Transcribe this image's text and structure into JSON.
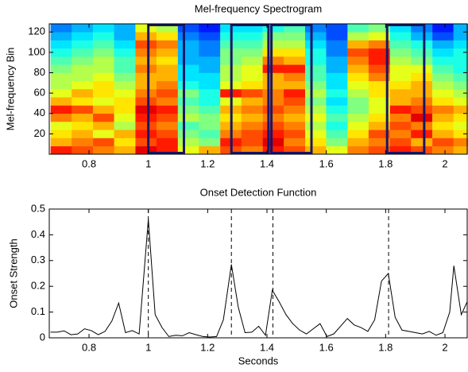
{
  "chart_data": [
    {
      "type": "heatmap",
      "title": "Mel-frequency Spectrogram",
      "ylabel": "Mel-frequency Bin",
      "colormap": "jet",
      "xlim": [
        0.666,
        2.075
      ],
      "ylim": [
        0,
        128
      ],
      "xticks": [
        0.8,
        1,
        1.2,
        1.4,
        1.6,
        1.8,
        2
      ],
      "yticks": [
        20,
        40,
        60,
        80,
        100,
        120
      ],
      "x": [
        0.706,
        0.777,
        0.849,
        0.92,
        0.992,
        1.063,
        1.135,
        1.206,
        1.278,
        1.349,
        1.421,
        1.492,
        1.564,
        1.635,
        1.707,
        1.778,
        1.85,
        1.921,
        1.993,
        2.064
      ],
      "y": [
        4,
        12,
        20,
        28,
        36,
        44,
        52,
        60,
        68,
        76,
        84,
        92,
        100,
        108,
        116,
        124
      ],
      "z": [
        [
          0.85,
          0.8,
          0.75,
          0.7,
          0.9,
          0.85,
          0.6,
          0.7,
          0.8,
          0.75,
          0.85,
          0.8,
          0.7,
          0.6,
          0.75,
          0.8,
          0.85,
          0.8,
          0.75,
          0.7
        ],
        [
          0.7,
          0.75,
          0.8,
          0.65,
          0.8,
          0.85,
          0.55,
          0.5,
          0.85,
          0.8,
          0.9,
          0.75,
          0.65,
          0.5,
          0.7,
          0.75,
          0.8,
          0.7,
          0.8,
          0.75
        ],
        [
          0.65,
          0.7,
          0.6,
          0.7,
          0.85,
          0.8,
          0.5,
          0.45,
          0.75,
          0.8,
          0.85,
          0.8,
          0.6,
          0.45,
          0.65,
          0.8,
          0.75,
          0.85,
          0.7,
          0.65
        ],
        [
          0.6,
          0.65,
          0.7,
          0.55,
          0.8,
          0.75,
          0.45,
          0.5,
          0.7,
          0.75,
          0.8,
          0.75,
          0.55,
          0.4,
          0.6,
          0.7,
          0.8,
          0.75,
          0.65,
          0.6
        ],
        [
          0.75,
          0.7,
          0.8,
          0.6,
          0.85,
          0.8,
          0.55,
          0.5,
          0.65,
          0.7,
          0.75,
          0.7,
          0.6,
          0.45,
          0.55,
          0.65,
          0.75,
          0.9,
          0.7,
          0.65
        ],
        [
          0.85,
          0.8,
          0.7,
          0.65,
          0.9,
          0.85,
          0.5,
          0.45,
          0.7,
          0.75,
          0.8,
          0.75,
          0.55,
          0.4,
          0.5,
          0.6,
          0.85,
          0.8,
          0.75,
          0.7
        ],
        [
          0.7,
          0.65,
          0.6,
          0.65,
          0.8,
          0.75,
          0.45,
          0.4,
          0.6,
          0.7,
          0.75,
          0.8,
          0.5,
          0.35,
          0.5,
          0.6,
          0.7,
          0.75,
          0.65,
          0.6
        ],
        [
          0.6,
          0.7,
          0.65,
          0.6,
          0.75,
          0.8,
          0.5,
          0.4,
          0.85,
          0.8,
          0.75,
          0.85,
          0.55,
          0.4,
          0.55,
          0.65,
          0.7,
          0.7,
          0.6,
          0.55
        ],
        [
          0.55,
          0.6,
          0.65,
          0.55,
          0.7,
          0.75,
          0.4,
          0.35,
          0.6,
          0.65,
          0.7,
          0.7,
          0.5,
          0.35,
          0.6,
          0.65,
          0.65,
          0.7,
          0.55,
          0.5
        ],
        [
          0.55,
          0.55,
          0.6,
          0.5,
          0.7,
          0.7,
          0.35,
          0.35,
          0.55,
          0.6,
          0.7,
          0.75,
          0.45,
          0.35,
          0.65,
          0.75,
          0.6,
          0.65,
          0.5,
          0.45
        ],
        [
          0.5,
          0.55,
          0.55,
          0.45,
          0.75,
          0.7,
          0.35,
          0.3,
          0.55,
          0.6,
          0.85,
          0.85,
          0.45,
          0.3,
          0.7,
          0.8,
          0.6,
          0.6,
          0.45,
          0.4
        ],
        [
          0.45,
          0.5,
          0.55,
          0.45,
          0.7,
          0.65,
          0.3,
          0.3,
          0.5,
          0.55,
          0.75,
          0.7,
          0.4,
          0.3,
          0.75,
          0.85,
          0.55,
          0.5,
          0.4,
          0.4
        ],
        [
          0.4,
          0.45,
          0.5,
          0.4,
          0.75,
          0.7,
          0.3,
          0.25,
          0.5,
          0.5,
          0.65,
          0.65,
          0.4,
          0.25,
          0.8,
          0.85,
          0.5,
          0.45,
          0.35,
          0.4
        ],
        [
          0.35,
          0.4,
          0.45,
          0.35,
          0.8,
          0.75,
          0.3,
          0.25,
          0.45,
          0.45,
          0.55,
          0.55,
          0.35,
          0.25,
          0.7,
          0.75,
          0.45,
          0.4,
          0.3,
          0.35
        ],
        [
          0.3,
          0.35,
          0.4,
          0.3,
          0.7,
          0.65,
          0.25,
          0.2,
          0.4,
          0.4,
          0.5,
          0.5,
          0.3,
          0.2,
          0.55,
          0.6,
          0.4,
          0.3,
          0.2,
          0.3
        ],
        [
          0.25,
          0.3,
          0.35,
          0.3,
          0.6,
          0.55,
          0.2,
          0.15,
          0.35,
          0.35,
          0.4,
          0.45,
          0.25,
          0.2,
          0.45,
          0.5,
          0.35,
          0.25,
          0.15,
          0.3
        ]
      ],
      "boxes": [
        [
          1.0,
          1.12
        ],
        [
          1.28,
          1.405
        ],
        [
          1.415,
          1.55
        ],
        [
          1.805,
          1.93
        ]
      ],
      "box_color": "#16166a"
    },
    {
      "type": "line",
      "title": "Onset Detection Function",
      "xlabel": "Seconds",
      "ylabel": "Onset Strength",
      "color": "#000000",
      "xlim": [
        0.666,
        2.075
      ],
      "ylim": [
        0,
        0.5
      ],
      "xticks": [
        0.8,
        1,
        1.2,
        1.4,
        1.6,
        1.8,
        2
      ],
      "yticks": [
        0,
        0.1,
        0.2,
        0.3,
        0.4,
        0.5
      ],
      "x": [
        0.67,
        0.693,
        0.716,
        0.739,
        0.762,
        0.785,
        0.808,
        0.831,
        0.854,
        0.877,
        0.9,
        0.923,
        0.946,
        0.969,
        1.0,
        1.023,
        1.046,
        1.069,
        1.092,
        1.115,
        1.138,
        1.161,
        1.184,
        1.207,
        1.23,
        1.253,
        1.28,
        1.303,
        1.326,
        1.349,
        1.372,
        1.395,
        1.418,
        1.441,
        1.464,
        1.487,
        1.51,
        1.533,
        1.556,
        1.579,
        1.602,
        1.625,
        1.648,
        1.671,
        1.694,
        1.717,
        1.74,
        1.763,
        1.786,
        1.809,
        1.832,
        1.855,
        1.878,
        1.901,
        1.924,
        1.947,
        1.97,
        1.993,
        2.016,
        2.03,
        2.055,
        2.075
      ],
      "values": [
        0.022,
        0.022,
        0.027,
        0.012,
        0.015,
        0.035,
        0.028,
        0.012,
        0.025,
        0.065,
        0.135,
        0.02,
        0.028,
        0.015,
        0.46,
        0.09,
        0.04,
        0.005,
        0.01,
        0.008,
        0.02,
        0.012,
        0.005,
        0.003,
        0.005,
        0.07,
        0.285,
        0.12,
        0.02,
        0.022,
        0.045,
        0.01,
        0.185,
        0.14,
        0.09,
        0.055,
        0.03,
        0.015,
        0.035,
        0.055,
        0.005,
        0.015,
        0.045,
        0.075,
        0.05,
        0.04,
        0.025,
        0.07,
        0.22,
        0.25,
        0.08,
        0.03,
        0.025,
        0.02,
        0.015,
        0.025,
        0.01,
        0.02,
        0.1,
        0.28,
        0.09,
        0.14
      ],
      "onsets": [
        1.0,
        1.28,
        1.42,
        1.81
      ]
    }
  ]
}
